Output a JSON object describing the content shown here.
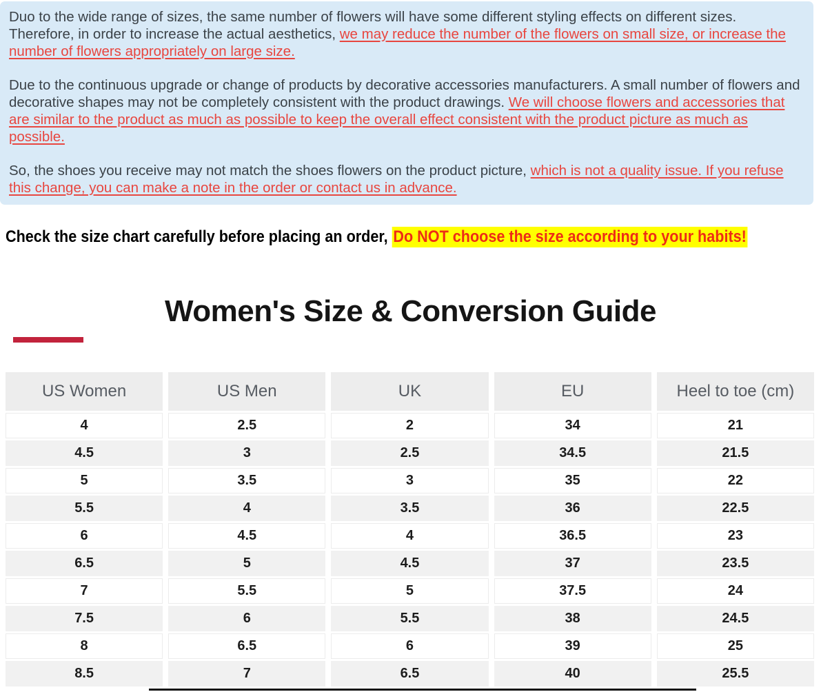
{
  "info_box": {
    "bg_color": "#d9eaf7",
    "emphasis_color": "#e8463f",
    "paragraphs": [
      {
        "text": "Duo to the wide range of sizes, the same number of flowers will have some different styling effects on different sizes. Therefore, in order to increase the actual aesthetics, ",
        "link": "we may reduce the number of the flowers on small size, or increase the number of flowers appropriately on large size."
      },
      {
        "text": "Due to the continuous upgrade or change of products by decorative accessories manufacturers. A small number of flowers and decorative shapes may not be completely consistent with the product drawings. ",
        "link": "We will choose flowers and accessories that are similar to the product as much as possible to keep the overall effect consistent with the product picture as much as possible."
      },
      {
        "text": "So, the shoes you receive may not match the shoes flowers on the product picture, ",
        "link": "which is not a quality issue. If you refuse this change, you can make a note in the order or contact us in advance."
      }
    ]
  },
  "warning": {
    "prefix": "Check the size chart carefully before placing an order, ",
    "highlight": "Do NOT choose the size according to your habits!",
    "highlight_color": "#ee2c16",
    "highlight_bg": "#ffff00"
  },
  "size_guide": {
    "title": "Women's Size & Conversion Guide",
    "accent_bar_color": "#c2233c"
  },
  "chart_data": {
    "type": "table",
    "title": "Women's Size & Conversion Guide",
    "columns": [
      "US Women",
      "US Men",
      "UK",
      "EU",
      "Heel to toe (cm)"
    ],
    "rows": [
      [
        "4",
        "2.5",
        "2",
        "34",
        "21"
      ],
      [
        "4.5",
        "3",
        "2.5",
        "34.5",
        "21.5"
      ],
      [
        "5",
        "3.5",
        "3",
        "35",
        "22"
      ],
      [
        "5.5",
        "4",
        "3.5",
        "36",
        "22.5"
      ],
      [
        "6",
        "4.5",
        "4",
        "36.5",
        "23"
      ],
      [
        "6.5",
        "5",
        "4.5",
        "37",
        "23.5"
      ],
      [
        "7",
        "5.5",
        "5",
        "37.5",
        "24"
      ],
      [
        "7.5",
        "6",
        "5.5",
        "38",
        "24.5"
      ],
      [
        "8",
        "6.5",
        "6",
        "39",
        "25"
      ],
      [
        "8.5",
        "7",
        "6.5",
        "40",
        "25.5"
      ]
    ]
  }
}
